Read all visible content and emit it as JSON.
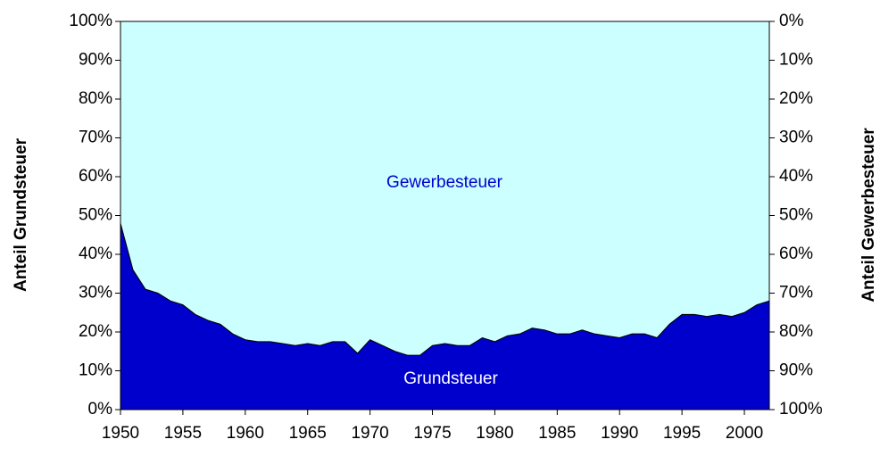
{
  "chart_data": {
    "type": "area",
    "x": [
      1950,
      1951,
      1952,
      1953,
      1954,
      1955,
      1956,
      1957,
      1958,
      1959,
      1960,
      1961,
      1962,
      1963,
      1964,
      1965,
      1966,
      1967,
      1968,
      1969,
      1970,
      1971,
      1972,
      1973,
      1974,
      1975,
      1976,
      1977,
      1978,
      1979,
      1980,
      1981,
      1982,
      1983,
      1984,
      1985,
      1986,
      1987,
      1988,
      1989,
      1990,
      1991,
      1992,
      1993,
      1994,
      1995,
      1996,
      1997,
      1998,
      1999,
      2000,
      2001,
      2002
    ],
    "series": [
      {
        "name": "Grundsteuer",
        "color": "#0000cc",
        "values": [
          48,
          36,
          31,
          30,
          28,
          27,
          24.5,
          23,
          22,
          19.5,
          18,
          17.5,
          17.5,
          17,
          16.5,
          17,
          16.5,
          17.5,
          17.5,
          14.5,
          18,
          16.5,
          15,
          14,
          14,
          16.5,
          17,
          16.5,
          16.5,
          18.5,
          17.5,
          19,
          19.5,
          21,
          20.5,
          19.5,
          19.5,
          20.5,
          19.5,
          19,
          18.5,
          19.5,
          19.5,
          18.5,
          22,
          24.5,
          24.5,
          24,
          24.5,
          24,
          25,
          27,
          28
        ]
      },
      {
        "name": "Gewerbesteuer",
        "color": "#ccffff",
        "axis": "y2",
        "values": [
          52,
          64,
          69,
          70,
          72,
          73,
          75.5,
          77,
          78,
          80.5,
          82,
          82.5,
          82.5,
          83,
          83.5,
          83,
          83.5,
          82.5,
          82.5,
          85.5,
          82,
          83.5,
          85,
          86,
          86,
          83.5,
          83,
          83.5,
          83.5,
          81.5,
          82.5,
          81,
          80.5,
          79,
          79.5,
          80.5,
          80.5,
          79.5,
          80.5,
          81,
          81.5,
          80.5,
          80.5,
          81.5,
          78,
          75.5,
          75.5,
          76,
          75.5,
          76,
          75,
          73,
          72
        ]
      }
    ],
    "ylabel": "Anteil Grundsteuer",
    "y2label": "Anteil Gewerbesteuer",
    "xlim": [
      1950,
      2002
    ],
    "xticks": [
      1950,
      1955,
      1960,
      1965,
      1970,
      1975,
      1980,
      1985,
      1990,
      1995,
      2000
    ],
    "ylim": [
      0,
      100
    ],
    "yticks": [
      {
        "value": 0,
        "label": "0%"
      },
      {
        "value": 10,
        "label": "10%"
      },
      {
        "value": 20,
        "label": "20%"
      },
      {
        "value": 30,
        "label": "30%"
      },
      {
        "value": 40,
        "label": "40%"
      },
      {
        "value": 50,
        "label": "50%"
      },
      {
        "value": 60,
        "label": "60%"
      },
      {
        "value": 70,
        "label": "70%"
      },
      {
        "value": 80,
        "label": "80%"
      },
      {
        "value": 90,
        "label": "90%"
      },
      {
        "value": 100,
        "label": "100%"
      }
    ],
    "y2lim": [
      100,
      0
    ],
    "y2ticks": [
      {
        "value": 0,
        "label": "0%"
      },
      {
        "value": 10,
        "label": "10%"
      },
      {
        "value": 20,
        "label": "20%"
      },
      {
        "value": 30,
        "label": "30%"
      },
      {
        "value": 40,
        "label": "40%"
      },
      {
        "value": 50,
        "label": "50%"
      },
      {
        "value": 60,
        "label": "60%"
      },
      {
        "value": 70,
        "label": "70%"
      },
      {
        "value": 80,
        "label": "80%"
      },
      {
        "value": 90,
        "label": "90%"
      },
      {
        "value": 100,
        "label": "100%"
      }
    ]
  }
}
